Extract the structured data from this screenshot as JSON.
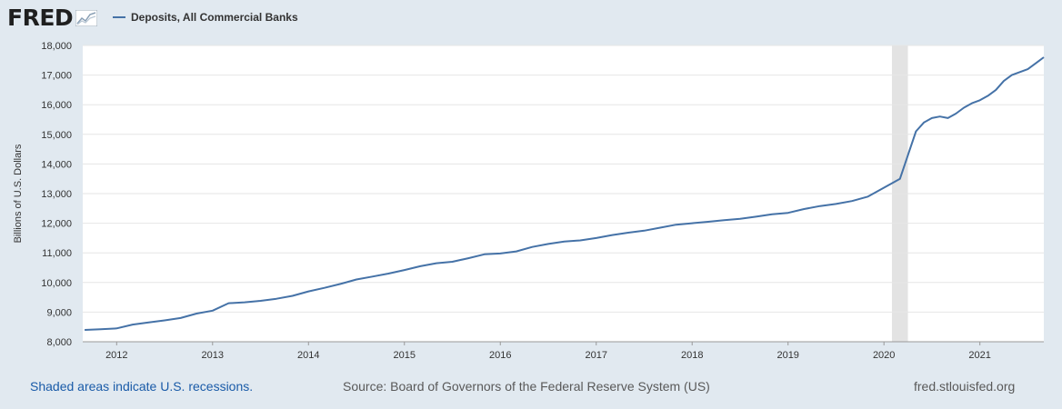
{
  "logo": {
    "text": "FRED"
  },
  "legend": {
    "label": "Deposits, All Commercial Banks",
    "color": "#4572a7"
  },
  "footer": {
    "recession_note": "Shaded areas indicate U.S. recessions.",
    "source": "Source: Board of Governors of the Federal Reserve System (US)",
    "site": "fred.stlouisfed.org"
  },
  "chart_data": {
    "type": "line",
    "title": "",
    "xlabel": "",
    "ylabel": "Billions of U.S. Dollars",
    "ylim": [
      8000,
      18000
    ],
    "yticks": [
      8000,
      9000,
      10000,
      11000,
      12000,
      13000,
      14000,
      15000,
      16000,
      17000,
      18000
    ],
    "ytick_labels": [
      "8,000",
      "9,000",
      "10,000",
      "11,000",
      "12,000",
      "13,000",
      "14,000",
      "15,000",
      "16,000",
      "17,000",
      "18,000"
    ],
    "xlim": [
      "2011-08-24",
      "2021-09-01"
    ],
    "xticks": [
      "2012",
      "2013",
      "2014",
      "2015",
      "2016",
      "2017",
      "2018",
      "2019",
      "2020",
      "2021"
    ],
    "grid": "horizontal",
    "line_color": "#4572a7",
    "recession_shading": [
      {
        "start": "2020-02",
        "end": "2020-04"
      }
    ],
    "series": [
      {
        "name": "Deposits, All Commercial Banks",
        "x": [
          "2011-09",
          "2011-11",
          "2012-01",
          "2012-03",
          "2012-05",
          "2012-07",
          "2012-09",
          "2012-11",
          "2013-01",
          "2013-03",
          "2013-05",
          "2013-07",
          "2013-09",
          "2013-11",
          "2014-01",
          "2014-03",
          "2014-05",
          "2014-07",
          "2014-09",
          "2014-11",
          "2015-01",
          "2015-03",
          "2015-05",
          "2015-07",
          "2015-09",
          "2015-11",
          "2016-01",
          "2016-03",
          "2016-05",
          "2016-07",
          "2016-09",
          "2016-11",
          "2017-01",
          "2017-03",
          "2017-05",
          "2017-07",
          "2017-09",
          "2017-11",
          "2018-01",
          "2018-03",
          "2018-05",
          "2018-07",
          "2018-09",
          "2018-11",
          "2019-01",
          "2019-03",
          "2019-05",
          "2019-07",
          "2019-09",
          "2019-11",
          "2020-01",
          "2020-02",
          "2020-03",
          "2020-04",
          "2020-05",
          "2020-06",
          "2020-07",
          "2020-08",
          "2020-09",
          "2020-10",
          "2020-11",
          "2020-12",
          "2021-01",
          "2021-02",
          "2021-03",
          "2021-04",
          "2021-05",
          "2021-06",
          "2021-07",
          "2021-08",
          "2021-09"
        ],
        "values": [
          8400,
          8420,
          8450,
          8580,
          8650,
          8720,
          8800,
          8950,
          9050,
          9300,
          9330,
          9380,
          9450,
          9550,
          9700,
          9820,
          9950,
          10100,
          10200,
          10300,
          10420,
          10550,
          10650,
          10700,
          10820,
          10950,
          10980,
          11050,
          11200,
          11300,
          11380,
          11420,
          11500,
          11600,
          11680,
          11750,
          11850,
          11950,
          12000,
          12050,
          12100,
          12150,
          12220,
          12300,
          12350,
          12480,
          12580,
          12650,
          12750,
          12900,
          13200,
          13350,
          13500,
          14300,
          15100,
          15400,
          15550,
          15600,
          15550,
          15700,
          15900,
          16050,
          16150,
          16300,
          16500,
          16800,
          17000,
          17100,
          17200,
          17400,
          17600
        ]
      }
    ]
  }
}
